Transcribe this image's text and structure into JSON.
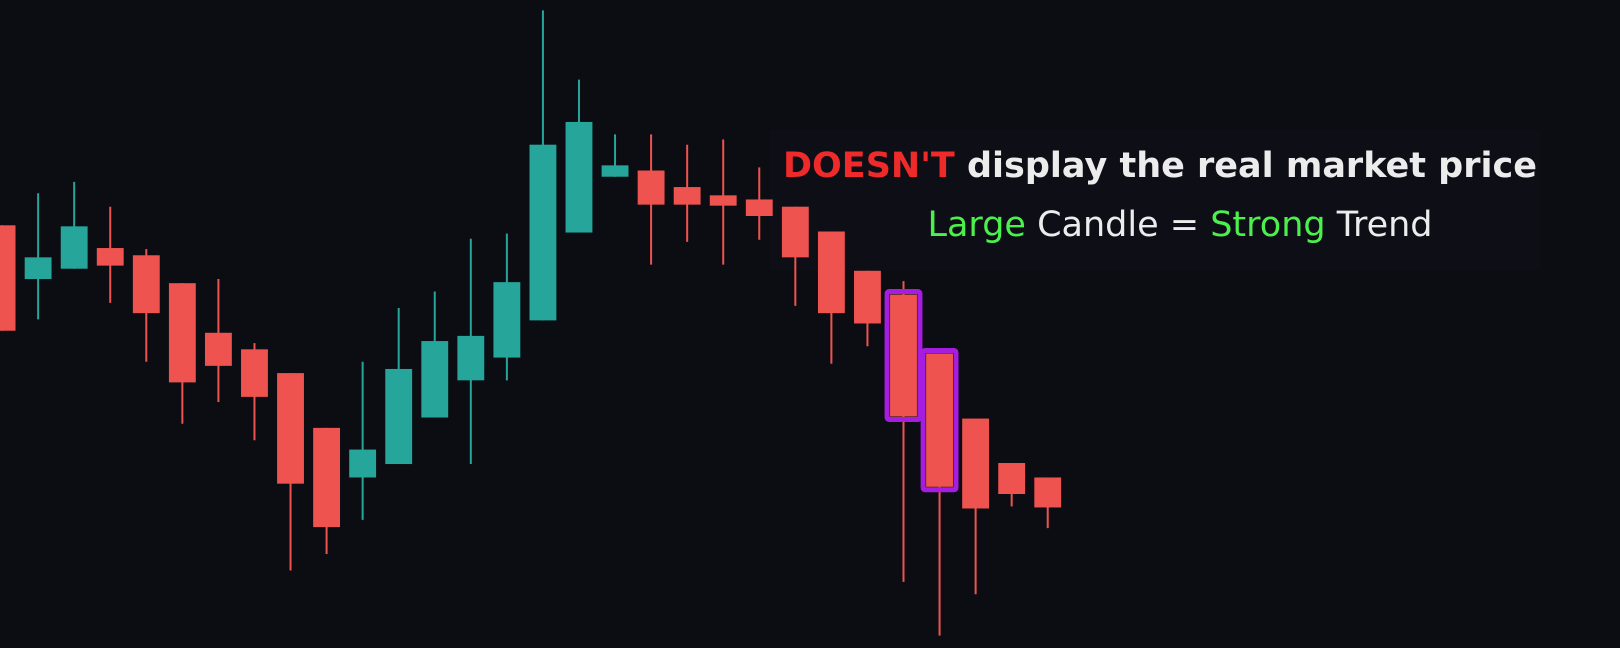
{
  "chart_data": {
    "type": "candlestick",
    "up_color": "#26a69a",
    "down_color": "#ef5350",
    "highlight_color": "#a51ee0",
    "ylim": [
      0,
      627
    ],
    "open": [
      409,
      357,
      367,
      387,
      380,
      353,
      305,
      289,
      266,
      213,
      165,
      178,
      223,
      259,
      281,
      317,
      402,
      456,
      462,
      446,
      438,
      434,
      427,
      403,
      365,
      342,
      285,
      222,
      179,
      165
    ],
    "close": [
      307,
      378,
      408,
      370,
      324,
      257,
      273,
      243,
      159,
      117,
      192,
      270,
      297,
      302,
      354,
      487,
      509,
      467,
      429,
      429,
      428,
      418,
      378,
      324,
      314,
      224,
      156,
      135,
      149,
      136
    ],
    "high": [
      409,
      440,
      451,
      427,
      386,
      353,
      357,
      295,
      266,
      213,
      277,
      329,
      345,
      396,
      401,
      617,
      550,
      497,
      497,
      487,
      492,
      465,
      427,
      403,
      365,
      355,
      285,
      222,
      179,
      165
    ],
    "low": [
      307,
      318,
      367,
      334,
      277,
      217,
      238,
      201,
      75,
      91,
      124,
      178,
      223,
      178,
      259,
      317,
      402,
      456,
      371,
      393,
      371,
      395,
      331,
      275,
      292,
      64,
      12,
      52,
      137,
      116
    ],
    "highlighted": [
      25,
      26
    ],
    "annotation": [
      [
        {
          "text": "DOESN'T",
          "color": "#ee2a2a"
        },
        {
          "text": " display the real market price",
          "color": "#ececec"
        }
      ],
      [
        {
          "text": "Large",
          "color": "#4cf04c"
        },
        {
          "text": " Candle = ",
          "color": "#ececec"
        },
        {
          "text": "Strong",
          "color": "#4cf04c"
        },
        {
          "text": " Trend",
          "color": "#ececec"
        }
      ]
    ]
  }
}
